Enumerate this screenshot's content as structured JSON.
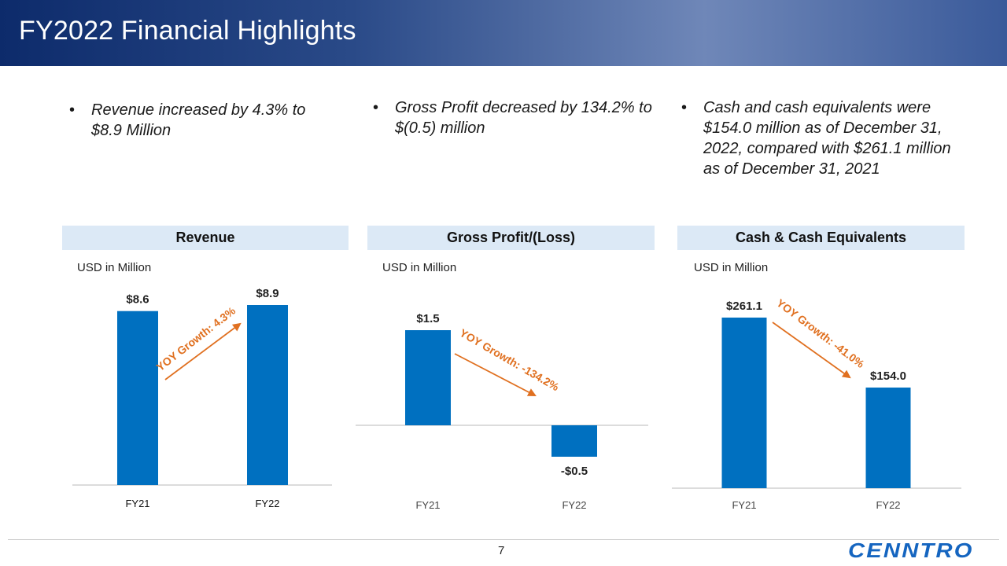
{
  "page": {
    "title": "FY2022 Financial Highlights",
    "page_number": "7",
    "logo": "CENNTRO"
  },
  "bullets": [
    {
      "symbol": "•",
      "text_lines": [
        "Revenue increased by 4.3% to",
        "$8.9 Million"
      ]
    },
    {
      "symbol": "•",
      "text_lines": [
        "Gross Profit decreased by 134.2% to",
        "$(0.5) million"
      ]
    },
    {
      "symbol": "•",
      "text_lines": [
        "Cash and cash equivalents were",
        "$154.0 million as of December 31,",
        "2022, compared with $261.1 million",
        "as of December 31, 2021"
      ]
    }
  ],
  "colors": {
    "bar": "#0070c0",
    "arrow": "#e07020",
    "panel_header": "#dce9f6",
    "logo": "#1565c0"
  },
  "chart_data": [
    {
      "type": "bar",
      "title": "Revenue",
      "ylabel": "USD in Million",
      "categories": [
        "FY21",
        "FY22"
      ],
      "values": [
        8.6,
        8.9
      ],
      "value_labels": [
        "$8.6",
        "$8.9"
      ],
      "ylim": [
        0,
        8.9
      ],
      "annotation": "YOY Growth: 4.3%"
    },
    {
      "type": "bar",
      "title": "Gross Profit/(Loss)",
      "ylabel": "USD in Million",
      "categories": [
        "FY21",
        "FY22"
      ],
      "values": [
        1.5,
        -0.5
      ],
      "value_labels": [
        "$1.5",
        "-$0.5"
      ],
      "ylim": [
        -0.5,
        1.5
      ],
      "annotation": "YOY Growth: -134.2%"
    },
    {
      "type": "bar",
      "title": "Cash & Cash Equivalents",
      "ylabel": "USD in Million",
      "categories": [
        "FY21",
        "FY22"
      ],
      "values": [
        261.1,
        154.0
      ],
      "value_labels": [
        "$261.1",
        "$154.0"
      ],
      "ylim": [
        0,
        261.1
      ],
      "annotation": "YOY Growth: -41.0%"
    }
  ]
}
